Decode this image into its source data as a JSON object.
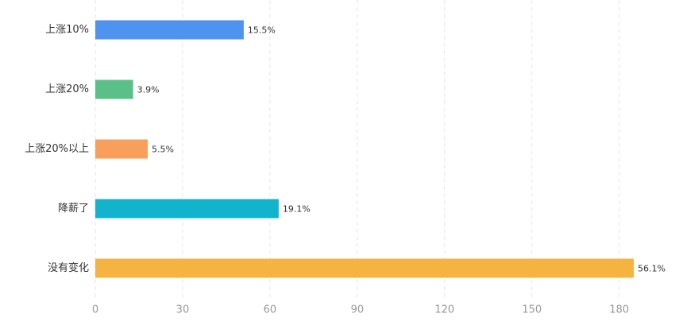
{
  "chart_data": {
    "type": "hbar",
    "categories": [
      "上涨10%",
      "上涨20%",
      "上涨20%以上",
      "降薪了",
      "没有变化"
    ],
    "values": [
      51,
      13,
      18,
      63,
      185
    ],
    "value_labels": [
      "15.5%",
      "3.9%",
      "5.5%",
      "19.1%",
      "56.1%"
    ],
    "colors": [
      "#4e94ee",
      "#5bbf8a",
      "#f79f5b",
      "#11b4cc",
      "#f5b342"
    ],
    "xlim": [
      0,
      185
    ],
    "xticks": [
      0,
      30,
      60,
      90,
      120,
      150,
      180
    ],
    "grid": true
  }
}
